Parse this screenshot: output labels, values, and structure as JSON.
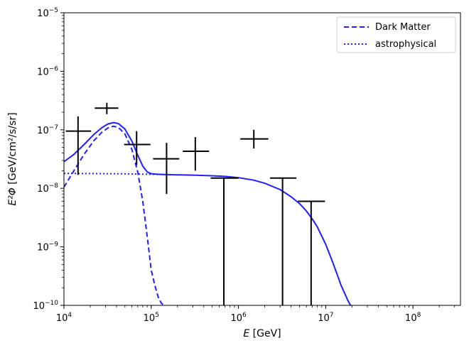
{
  "chart_data": {
    "type": "line",
    "title": "",
    "xlabel_var": "E",
    "xlabel_unit": " [GeV]",
    "ylabel_var": "E²Φ",
    "ylabel_unit": " [GeV/cm²/s/sr]",
    "x_scale": "log",
    "y_scale": "log",
    "xlim": [
      10000,
      350000000
    ],
    "ylim": [
      1e-10,
      1e-05
    ],
    "x_ticks": [
      {
        "value": 10000,
        "base": "10",
        "exp": "4"
      },
      {
        "value": 100000,
        "base": "10",
        "exp": "5"
      },
      {
        "value": 1000000,
        "base": "10",
        "exp": "6"
      },
      {
        "value": 10000000,
        "base": "10",
        "exp": "7"
      },
      {
        "value": 100000000,
        "base": "10",
        "exp": "8"
      }
    ],
    "y_ticks": [
      {
        "value": 1e-10,
        "base": "10",
        "exp": "−10"
      },
      {
        "value": 1e-09,
        "base": "10",
        "exp": "−9"
      },
      {
        "value": 1e-08,
        "base": "10",
        "exp": "−8"
      },
      {
        "value": 1e-07,
        "base": "10",
        "exp": "−7"
      },
      {
        "value": 1e-06,
        "base": "10",
        "exp": "−6"
      },
      {
        "value": 1e-05,
        "base": "10",
        "exp": "−5"
      }
    ],
    "legend_position": "top-right",
    "series": [
      {
        "name": "Dark Matter",
        "style": "dashed",
        "color": "#1f1fff",
        "x": [
          10000,
          13000,
          17000,
          22000,
          27000,
          32000,
          37000,
          42000,
          50000,
          60000,
          70000,
          80000,
          90000,
          100000,
          110000,
          120000,
          130000,
          140000
        ],
        "y": [
          1.05e-08,
          2e-08,
          3.8e-08,
          6.5e-08,
          9e-08,
          1.08e-07,
          1.15e-07,
          1.1e-07,
          8.5e-08,
          4.6e-08,
          1.9e-08,
          6e-09,
          1.5e-09,
          4e-10,
          2.2e-10,
          1.4e-10,
          1.1e-10,
          1e-10
        ]
      },
      {
        "name": "astrophysical",
        "style": "dotted",
        "color": "#1f1fff",
        "x": [
          10000,
          20000,
          50000,
          100000,
          140000
        ],
        "y": [
          1.8e-08,
          1.79e-08,
          1.77e-08,
          1.74e-08,
          1.72e-08
        ]
      },
      {
        "name": "",
        "style": "solid",
        "color": "#1f1fff",
        "x": [
          10000,
          13000,
          17000,
          22000,
          27000,
          32000,
          37000,
          42000,
          50000,
          60000,
          70000,
          80000,
          90000,
          100000,
          120000,
          140000,
          200000,
          300000,
          500000,
          700000,
          1000000,
          1500000,
          2000000,
          3000000,
          4000000,
          5000000,
          6000000,
          7000000,
          8000000,
          10000000,
          12000000,
          15000000,
          18000000,
          20000000
        ],
        "y": [
          2.85e-08,
          3.8e-08,
          5.6e-08,
          8.3e-08,
          1.08e-07,
          1.26e-07,
          1.33e-07,
          1.28e-07,
          1.03e-07,
          6.4e-08,
          3.7e-08,
          2.4e-08,
          1.9e-08,
          1.78e-08,
          1.74e-08,
          1.72e-08,
          1.7e-08,
          1.68e-08,
          1.64e-08,
          1.6e-08,
          1.52e-08,
          1.38e-08,
          1.22e-08,
          9.5e-09,
          7.2e-09,
          5.5e-09,
          4.1e-09,
          3e-09,
          2.2e-09,
          1.1e-09,
          5.5e-10,
          2.2e-10,
          1.2e-10,
          9e-11
        ]
      }
    ],
    "data_points": [
      {
        "x": 14500,
        "y": 9.5e-08,
        "x_lo": 10500,
        "x_hi": 20500,
        "y_lo": 1.7e-08,
        "y_hi": 1.7e-07,
        "upper_limit": false
      },
      {
        "x": 31000,
        "y": 2.35e-07,
        "x_lo": 22500,
        "x_hi": 42000,
        "y_lo": 1.85e-07,
        "y_hi": 2.9e-07,
        "upper_limit": false
      },
      {
        "x": 68000,
        "y": 5.6e-08,
        "x_lo": 49000,
        "x_hi": 98000,
        "y_lo": 2.5e-08,
        "y_hi": 9.5e-08,
        "upper_limit": false
      },
      {
        "x": 150000,
        "y": 3.2e-08,
        "x_lo": 105000,
        "x_hi": 210000,
        "y_lo": 8e-09,
        "y_hi": 6e-08,
        "upper_limit": false
      },
      {
        "x": 320000,
        "y": 4.3e-08,
        "x_lo": 230000,
        "x_hi": 460000,
        "y_lo": 2e-08,
        "y_hi": 7.5e-08,
        "upper_limit": false
      },
      {
        "x": 680000,
        "y": 1.5e-08,
        "x_lo": 480000,
        "x_hi": 1000000,
        "y_lo": 1e-10,
        "y_hi": 1.5e-08,
        "upper_limit": true
      },
      {
        "x": 1500000,
        "y": 7e-08,
        "x_lo": 1050000,
        "x_hi": 2200000,
        "y_lo": 4.8e-08,
        "y_hi": 1e-07,
        "upper_limit": false
      },
      {
        "x": 3200000,
        "y": 1.5e-08,
        "x_lo": 2300000,
        "x_hi": 4600000,
        "y_lo": 1e-10,
        "y_hi": 1.5e-08,
        "upper_limit": true
      },
      {
        "x": 6800000,
        "y": 6e-09,
        "x_lo": 4800000,
        "x_hi": 9800000,
        "y_lo": 1e-10,
        "y_hi": 6e-09,
        "upper_limit": true
      }
    ]
  }
}
